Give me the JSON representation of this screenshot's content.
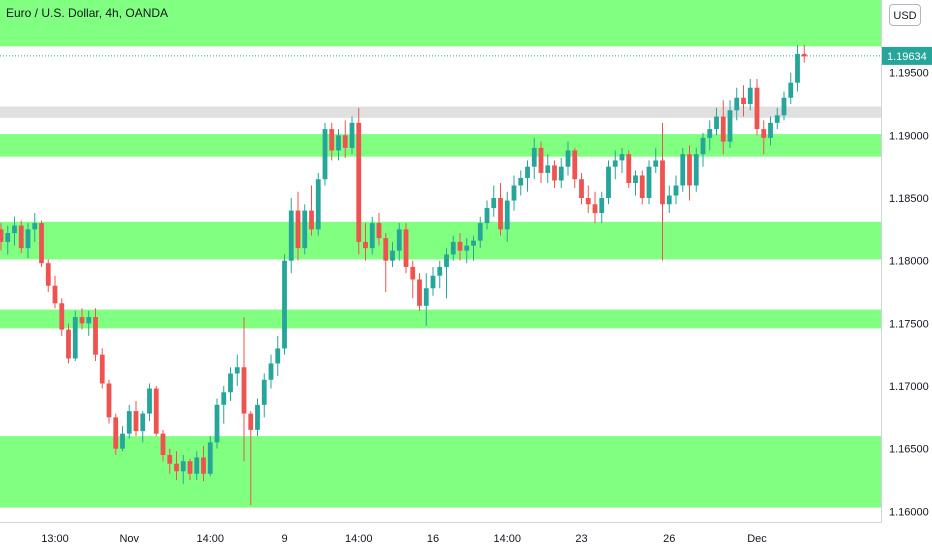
{
  "header": {
    "title": "Euro / U.S. Dollar, 4h, OANDA",
    "currency_button": "USD"
  },
  "colors": {
    "zone": "#80ff80",
    "grey_zone": "#e0e0e0",
    "up": "#26a69a",
    "down": "#ef5350",
    "price_tag": "#26a69a",
    "axis_text": "#131722"
  },
  "chart_data": {
    "type": "candlestick",
    "title": "Euro / U.S. Dollar, 4h, OANDA",
    "ylim": [
      1.15915,
      1.2008
    ],
    "y_ticks": [
      "1.16000",
      "1.16500",
      "1.17000",
      "1.17500",
      "1.18000",
      "1.18500",
      "1.19000",
      "1.19500"
    ],
    "x_ticks": [
      {
        "label": "13:00",
        "i": 8
      },
      {
        "label": "Nov",
        "i": 19
      },
      {
        "label": "14:00",
        "i": 31
      },
      {
        "label": "9",
        "i": 42
      },
      {
        "label": "14:00",
        "i": 53
      },
      {
        "label": "16",
        "i": 64
      },
      {
        "label": "14:00",
        "i": 75
      },
      {
        "label": "23",
        "i": 86
      },
      {
        "label": "26",
        "i": 99
      },
      {
        "label": "Dec",
        "i": 112
      }
    ],
    "last_price": "1.19634",
    "grid": false,
    "zones": [
      {
        "low": 1.1971,
        "high": 1.2008,
        "color": "green"
      },
      {
        "low": 1.1914,
        "high": 1.1923,
        "color": "grey"
      },
      {
        "low": 1.1883,
        "high": 1.1901,
        "color": "green"
      },
      {
        "low": 1.1801,
        "high": 1.1831,
        "color": "green"
      },
      {
        "low": 1.1746,
        "high": 1.1761,
        "color": "green"
      },
      {
        "low": 1.1603,
        "high": 1.166,
        "color": "green"
      }
    ],
    "candles": [
      [
        1.1825,
        1.183,
        1.1808,
        1.1815
      ],
      [
        1.1815,
        1.1828,
        1.1805,
        1.1822
      ],
      [
        1.1822,
        1.1835,
        1.1812,
        1.1828
      ],
      [
        1.1828,
        1.1832,
        1.1806,
        1.181
      ],
      [
        1.181,
        1.183,
        1.1802,
        1.1825
      ],
      [
        1.1825,
        1.1838,
        1.1815,
        1.183
      ],
      [
        1.183,
        1.1832,
        1.1795,
        1.1798
      ],
      [
        1.1798,
        1.1801,
        1.1775,
        1.178
      ],
      [
        1.178,
        1.1788,
        1.1762,
        1.1766
      ],
      [
        1.1766,
        1.177,
        1.174,
        1.1745
      ],
      [
        1.1745,
        1.175,
        1.1718,
        1.1722
      ],
      [
        1.1722,
        1.176,
        1.172,
        1.1755
      ],
      [
        1.1755,
        1.1762,
        1.1745,
        1.175
      ],
      [
        1.175,
        1.176,
        1.174,
        1.1755
      ],
      [
        1.1755,
        1.1762,
        1.172,
        1.1725
      ],
      [
        1.1725,
        1.173,
        1.1698,
        1.1702
      ],
      [
        1.1702,
        1.1705,
        1.167,
        1.1675
      ],
      [
        1.1675,
        1.1678,
        1.1645,
        1.165
      ],
      [
        1.165,
        1.1668,
        1.1648,
        1.1662
      ],
      [
        1.1662,
        1.1685,
        1.1658,
        1.168
      ],
      [
        1.168,
        1.1688,
        1.166,
        1.1664
      ],
      [
        1.1664,
        1.168,
        1.1655,
        1.1678
      ],
      [
        1.1678,
        1.1702,
        1.1672,
        1.1698
      ],
      [
        1.1698,
        1.17,
        1.166,
        1.1662
      ],
      [
        1.1662,
        1.1665,
        1.164,
        1.1645
      ],
      [
        1.1645,
        1.165,
        1.163,
        1.1638
      ],
      [
        1.1638,
        1.1648,
        1.1625,
        1.1632
      ],
      [
        1.1632,
        1.1645,
        1.1622,
        1.164
      ],
      [
        1.164,
        1.1642,
        1.1625,
        1.163
      ],
      [
        1.163,
        1.1648,
        1.1625,
        1.1643
      ],
      [
        1.1643,
        1.1652,
        1.1624,
        1.163
      ],
      [
        1.163,
        1.166,
        1.1628,
        1.1655
      ],
      [
        1.1655,
        1.169,
        1.165,
        1.1685
      ],
      [
        1.1685,
        1.17,
        1.167,
        1.1695
      ],
      [
        1.1695,
        1.1715,
        1.1688,
        1.171
      ],
      [
        1.171,
        1.1725,
        1.17,
        1.1715
      ],
      [
        1.1715,
        1.1755,
        1.164,
        1.1678
      ],
      [
        1.1678,
        1.168,
        1.1605,
        1.1665
      ],
      [
        1.1665,
        1.169,
        1.166,
        1.1685
      ],
      [
        1.1685,
        1.171,
        1.1675,
        1.1705
      ],
      [
        1.1705,
        1.1725,
        1.1698,
        1.1718
      ],
      [
        1.1718,
        1.174,
        1.1708,
        1.173
      ],
      [
        1.173,
        1.1805,
        1.1725,
        1.18
      ],
      [
        1.18,
        1.185,
        1.179,
        1.184
      ],
      [
        1.184,
        1.1855,
        1.18,
        1.181
      ],
      [
        1.181,
        1.1845,
        1.1805,
        1.184
      ],
      [
        1.184,
        1.186,
        1.182,
        1.1825
      ],
      [
        1.1825,
        1.187,
        1.182,
        1.1865
      ],
      [
        1.1865,
        1.191,
        1.186,
        1.1905
      ],
      [
        1.1905,
        1.191,
        1.188,
        1.1888
      ],
      [
        1.1888,
        1.1905,
        1.188,
        1.19
      ],
      [
        1.19,
        1.1912,
        1.1882,
        1.189
      ],
      [
        1.189,
        1.1915,
        1.1885,
        1.191
      ],
      [
        1.191,
        1.1922,
        1.1805,
        1.1815
      ],
      [
        1.1815,
        1.183,
        1.18,
        1.181
      ],
      [
        1.181,
        1.1835,
        1.1805,
        1.183
      ],
      [
        1.183,
        1.1838,
        1.1812,
        1.1818
      ],
      [
        1.1818,
        1.1822,
        1.1775,
        1.18
      ],
      [
        1.18,
        1.1815,
        1.1795,
        1.1808
      ],
      [
        1.1808,
        1.183,
        1.18,
        1.1825
      ],
      [
        1.1825,
        1.183,
        1.179,
        1.1795
      ],
      [
        1.1795,
        1.18,
        1.177,
        1.1785
      ],
      [
        1.1785,
        1.179,
        1.176,
        1.1764
      ],
      [
        1.1764,
        1.179,
        1.1748,
        1.1778
      ],
      [
        1.1778,
        1.1795,
        1.1772,
        1.1788
      ],
      [
        1.1788,
        1.18,
        1.1778,
        1.1795
      ],
      [
        1.1795,
        1.181,
        1.177,
        1.1805
      ],
      [
        1.1805,
        1.182,
        1.18,
        1.1815
      ],
      [
        1.1815,
        1.1822,
        1.18,
        1.1808
      ],
      [
        1.1808,
        1.1818,
        1.1798,
        1.1812
      ],
      [
        1.1812,
        1.182,
        1.18,
        1.1816
      ],
      [
        1.1816,
        1.1835,
        1.181,
        1.183
      ],
      [
        1.183,
        1.1848,
        1.1825,
        1.1842
      ],
      [
        1.1842,
        1.186,
        1.1835,
        1.185
      ],
      [
        1.185,
        1.1862,
        1.182,
        1.1825
      ],
      [
        1.1825,
        1.1855,
        1.1815,
        1.1848
      ],
      [
        1.1848,
        1.1868,
        1.184,
        1.186
      ],
      [
        1.186,
        1.1872,
        1.1852,
        1.1866
      ],
      [
        1.1866,
        1.188,
        1.1855,
        1.1875
      ],
      [
        1.1875,
        1.1898,
        1.1865,
        1.189
      ],
      [
        1.189,
        1.1895,
        1.1862,
        1.187
      ],
      [
        1.187,
        1.1885,
        1.1862,
        1.1876
      ],
      [
        1.1876,
        1.188,
        1.1858,
        1.1864
      ],
      [
        1.1864,
        1.1882,
        1.1858,
        1.1875
      ],
      [
        1.1875,
        1.1895,
        1.1868,
        1.1888
      ],
      [
        1.1888,
        1.189,
        1.1858,
        1.1865
      ],
      [
        1.1865,
        1.187,
        1.1845,
        1.185
      ],
      [
        1.185,
        1.186,
        1.1838,
        1.1845
      ],
      [
        1.1845,
        1.1855,
        1.183,
        1.1838
      ],
      [
        1.1838,
        1.1855,
        1.183,
        1.185
      ],
      [
        1.185,
        1.188,
        1.1845,
        1.1875
      ],
      [
        1.1875,
        1.1888,
        1.1865,
        1.188
      ],
      [
        1.188,
        1.189,
        1.187,
        1.1885
      ],
      [
        1.1885,
        1.1888,
        1.1858,
        1.1862
      ],
      [
        1.1862,
        1.1872,
        1.1852,
        1.1868
      ],
      [
        1.1868,
        1.1872,
        1.1845,
        1.185
      ],
      [
        1.185,
        1.188,
        1.1845,
        1.1875
      ],
      [
        1.1875,
        1.189,
        1.187,
        1.188
      ],
      [
        1.188,
        1.191,
        1.18,
        1.1845
      ],
      [
        1.1845,
        1.186,
        1.1838,
        1.1852
      ],
      [
        1.1852,
        1.1868,
        1.1845,
        1.186
      ],
      [
        1.186,
        1.189,
        1.1855,
        1.1885
      ],
      [
        1.1885,
        1.1892,
        1.1848,
        1.186
      ],
      [
        1.186,
        1.189,
        1.1855,
        1.1885
      ],
      [
        1.1885,
        1.1902,
        1.1875,
        1.1898
      ],
      [
        1.1898,
        1.1912,
        1.1888,
        1.1905
      ],
      [
        1.1905,
        1.1922,
        1.19,
        1.1915
      ],
      [
        1.1915,
        1.1928,
        1.1885,
        1.1895
      ],
      [
        1.1895,
        1.1928,
        1.189,
        1.192
      ],
      [
        1.192,
        1.1938,
        1.1912,
        1.193
      ],
      [
        1.193,
        1.194,
        1.1915,
        1.1925
      ],
      [
        1.1925,
        1.1945,
        1.192,
        1.1938
      ],
      [
        1.1938,
        1.1945,
        1.19,
        1.1905
      ],
      [
        1.1905,
        1.1912,
        1.1885,
        1.1898
      ],
      [
        1.1898,
        1.1915,
        1.1892,
        1.191
      ],
      [
        1.191,
        1.1922,
        1.1905,
        1.1916
      ],
      [
        1.1916,
        1.1935,
        1.1912,
        1.193
      ],
      [
        1.193,
        1.195,
        1.1925,
        1.1942
      ],
      [
        1.1942,
        1.1972,
        1.1935,
        1.1965
      ],
      [
        1.1965,
        1.1972,
        1.1958,
        1.1963
      ]
    ]
  }
}
